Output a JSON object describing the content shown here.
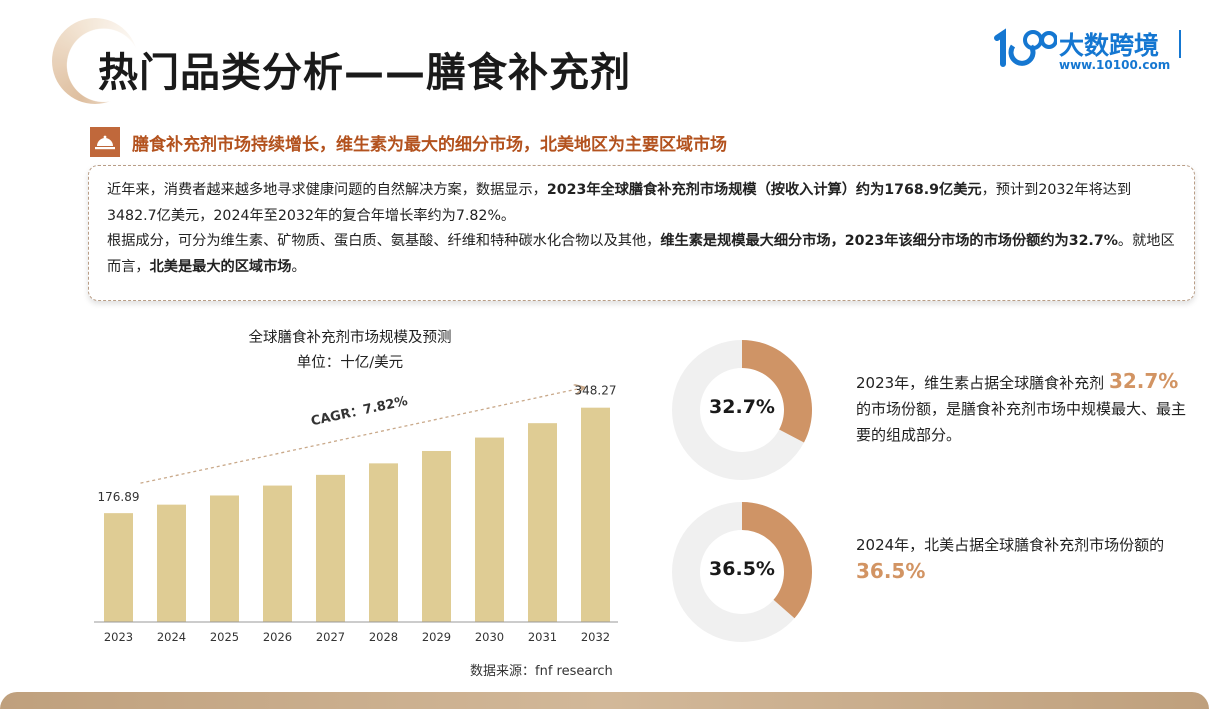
{
  "header": {
    "title": "热门品类分析——膳食补充剂",
    "logo_name": "大数跨境",
    "logo_url": "www.10100.com"
  },
  "subtitle": "膳食补充剂市场持续增长，维生素为最大的细分市场，北美地区为主要区域市场",
  "description": {
    "p1_a": "近年来，消费者越来越多地寻求健康问题的自然解决方案，数据显示，",
    "p1_b": "2023年全球膳食补充剂市场规模（按收入计算）约为1768.9亿美元",
    "p1_c": "，预计到2032年将达到3482.7亿美元，2024年至2032年的复合年增长率约为7.82%。",
    "p2_a": "根据成分，可分为维生素、矿物质、蛋白质、氨基酸、纤维和特种碳水化合物以及其他，",
    "p2_b": "维生素是规模最大细分市场，2023年该细分市场的市场份额约为32.7%",
    "p2_c": "。就地区而言，",
    "p2_d": "北美是最大的区域市场",
    "p2_e": "。"
  },
  "chart_data": [
    {
      "type": "bar",
      "title": "全球膳食补充剂市场规模及预测",
      "unit": "单位：十亿/美元",
      "categories": [
        "2023",
        "2024",
        "2025",
        "2026",
        "2027",
        "2028",
        "2029",
        "2030",
        "2031",
        "2032"
      ],
      "values": [
        176.89,
        190.7,
        205.6,
        221.7,
        239.1,
        257.8,
        277.9,
        299.7,
        323.1,
        348.27
      ],
      "value_labels": {
        "first": "176.89",
        "last": "348.27"
      },
      "ylim": [
        0,
        390
      ],
      "annotation": "CAGR：7.82%",
      "bar_color": "#dfcc94",
      "source": "数据来源：fnf research"
    },
    {
      "type": "pie",
      "label": "32.7%",
      "values": [
        32.7,
        67.3
      ],
      "colors": [
        "#cf9466",
        "#f0f0f0"
      ]
    },
    {
      "type": "pie",
      "label": "36.5%",
      "values": [
        36.5,
        63.5
      ],
      "colors": [
        "#cf9466",
        "#f0f0f0"
      ]
    }
  ],
  "notes": {
    "n1_a": "2023年，维生素占据全球膳食补充剂 ",
    "n1_hl": "32.7%",
    "n1_b": "的市场份额，是膳食补充剂市场中规模最大、最主要的组成部分。",
    "n2_a": "2024年，北美占据全球膳食补充剂市场份额的",
    "n2_hl": "36.5%"
  }
}
